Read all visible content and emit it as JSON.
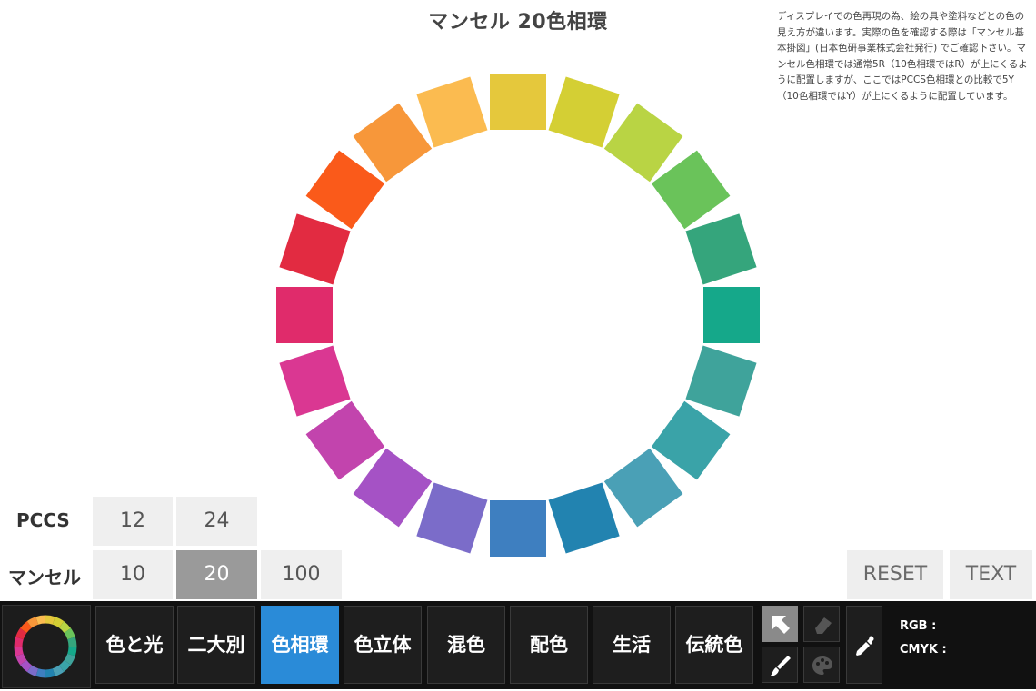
{
  "header": {
    "title": "マンセル 20色相環",
    "note": "ディスプレイでの色再現の為、絵の具や塗料などとの色の見え方が違います。実際の色を確認する際は「マンセル基本掛図」(日本色研事業株式会社発行) でご確認下さい。マンセル色相環では通常5R（10色相環ではR）が上にくるように配置しますが、ここではPCCS色相環との比較で5Y（10色相環ではY）が上にくるように配置しています。"
  },
  "wheel": {
    "colors": [
      "#e5c83c",
      "#d4cf34",
      "#b9d444",
      "#6ac35a",
      "#35a57c",
      "#15a88a",
      "#3fa39b",
      "#3aa3a8",
      "#4aa0b6",
      "#2283b0",
      "#3e7fc0",
      "#7b6cc9",
      "#a552c5",
      "#c244ad",
      "#da3792",
      "#e02b6b",
      "#e22b41",
      "#fa5a1a",
      "#f7973a",
      "#fbbb50"
    ]
  },
  "selector": {
    "pccs_label": "PCCS",
    "pccs_options": [
      "12",
      "24"
    ],
    "munsell_label": "マンセル",
    "munsell_options": [
      "10",
      "20",
      "100"
    ],
    "munsell_selected": "20"
  },
  "actions": {
    "reset": "RESET",
    "text": "TEXT"
  },
  "nav": {
    "items": [
      "色と光",
      "二大別",
      "色相環",
      "色立体",
      "混色",
      "配色",
      "生活",
      "伝統色"
    ],
    "active": "色相環"
  },
  "tools": {
    "icons": [
      "arrow-cursor-icon",
      "eraser-icon",
      "brush-icon",
      "palette-icon",
      "eyedropper-icon"
    ]
  },
  "info": {
    "rgb_label": "RGB :",
    "cmyk_label": "CMYK :"
  }
}
